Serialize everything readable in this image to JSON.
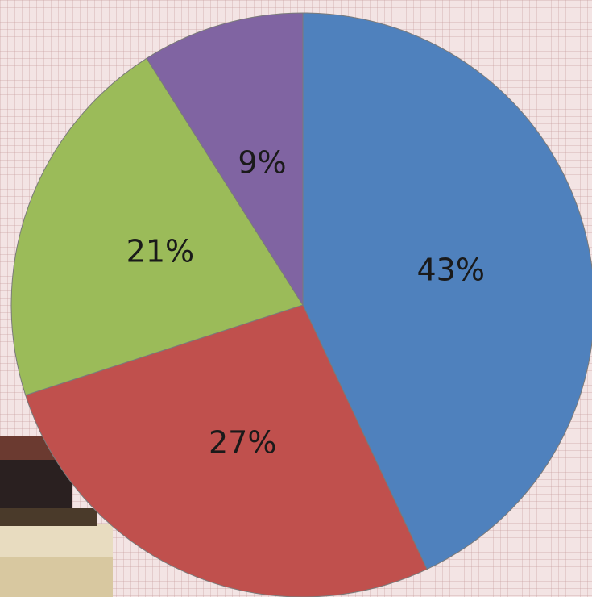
{
  "chart_data": {
    "type": "pie",
    "categories": [
      null,
      null,
      null,
      null
    ],
    "values": [
      43,
      27,
      21,
      9
    ],
    "value_labels": [
      "43%",
      "27%",
      "21%",
      "9%"
    ],
    "colors": [
      "#4f81bd",
      "#c0504d",
      "#9bbb59",
      "#8064a2"
    ]
  }
}
